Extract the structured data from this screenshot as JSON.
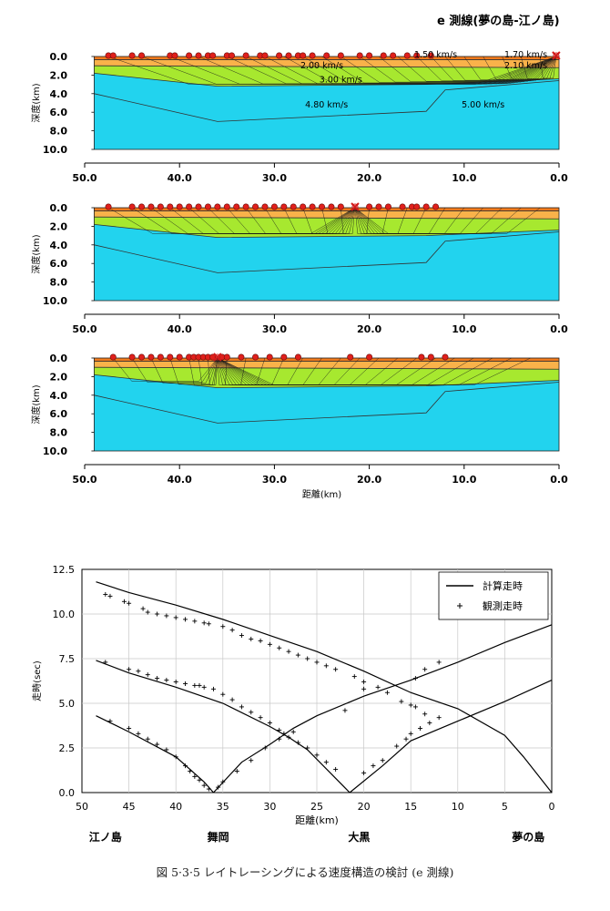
{
  "figure_title": "e 測線(夢の島-江ノ島)",
  "caption": "図 5·3·5 レイトレーシングによる速度構造の検討 (e 測線)",
  "colors": {
    "layer1": "#f07a1c",
    "layer2": "#f9b24a",
    "layer3": "#a7e82f",
    "layer4": "#22d3ee",
    "ray": "#1a1a1a",
    "station": "#e0201b",
    "shot": "#d21b1b",
    "calc_line": "#000000",
    "obs_marker": "#000000"
  },
  "sections": {
    "y_axis_label": "深度(km)",
    "x_axis_label": "距離(km)",
    "xticks": [
      50,
      40,
      30,
      20,
      10,
      0
    ],
    "xtick_labels": [
      "50.0",
      "40.0",
      "30.0",
      "20.0",
      "10.0",
      "0.0"
    ],
    "yticks": [
      0,
      2,
      4,
      6,
      8,
      10
    ],
    "ytick_labels": [
      "0.0",
      "2.0",
      "4.0",
      "6.0",
      "8.0",
      "10.0"
    ],
    "xlim": [
      50,
      0
    ],
    "ylim": [
      0,
      10
    ],
    "model_x_range": [
      49,
      0
    ],
    "velocity_labels": [
      {
        "text": "1.50 km/s",
        "x": 13,
        "y": -0.2
      },
      {
        "text": "1.70 km/s",
        "x": 3.5,
        "y": -0.2
      },
      {
        "text": "2.00 km/s",
        "x": 25,
        "y": 1.0
      },
      {
        "text": "2.10 km/s",
        "x": 3.5,
        "y": 1.0
      },
      {
        "text": "3.00 km/s",
        "x": 23,
        "y": 2.5
      },
      {
        "text": "4.80 km/s",
        "x": 24.5,
        "y": 5.2
      },
      {
        "text": "5.00 km/s",
        "x": 8,
        "y": 5.2
      }
    ],
    "boundaries": {
      "b1": [
        [
          49,
          0.35
        ],
        [
          0,
          0.35
        ]
      ],
      "b2": [
        [
          49,
          1.0
        ],
        [
          0,
          1.2
        ]
      ],
      "b3": [
        [
          49,
          1.8
        ],
        [
          36,
          3.2
        ],
        [
          14,
          3.0
        ],
        [
          0,
          2.4
        ]
      ],
      "b4": [
        [
          49,
          4.0
        ],
        [
          36,
          7.0
        ],
        [
          14,
          5.9
        ],
        [
          12,
          3.6
        ],
        [
          0,
          2.6
        ]
      ]
    },
    "panels": [
      {
        "shot_km": 0.3,
        "stations_km": [
          47.5,
          47,
          45,
          44,
          41,
          40.5,
          39,
          38,
          37,
          36.5,
          35,
          34.5,
          33,
          31.5,
          31,
          29.5,
          28.5,
          27.5,
          27,
          26,
          24.5,
          23,
          21,
          20,
          18.5,
          17.5,
          16,
          15,
          13.5
        ],
        "rays_to_km": [
          47.5,
          44,
          41,
          38,
          35,
          33,
          31,
          29,
          27,
          25,
          23,
          21,
          19,
          17,
          15,
          13.5,
          12,
          10,
          8,
          6,
          4,
          2
        ],
        "ray_depth_km": 3.0
      },
      {
        "shot_km": 21.5,
        "stations_km": [
          47.5,
          45,
          44,
          43,
          42,
          41,
          40,
          39,
          38,
          37,
          36,
          35,
          34,
          33,
          32,
          31,
          30,
          29,
          28,
          27,
          26,
          25,
          24,
          23,
          20,
          19,
          18,
          16.5,
          15.5,
          15,
          14,
          13
        ],
        "rays_to_km": [
          47.5,
          45,
          43,
          41,
          39,
          37,
          35,
          33,
          31,
          29,
          27,
          25,
          23,
          20,
          18,
          16,
          14,
          12,
          10,
          8,
          6,
          4,
          2
        ],
        "ray_depth_km": 2.8
      },
      {
        "shot_km": 36,
        "stations_km": [
          47,
          45,
          44,
          43,
          42,
          41,
          40,
          39,
          38.5,
          38,
          37.5,
          37,
          36.5,
          35.5,
          35,
          33.5,
          32,
          30.5,
          29,
          27.5,
          22,
          20,
          14.5,
          13.5,
          12
        ],
        "rays_to_km": [
          47,
          45,
          43,
          41,
          39,
          38,
          37,
          35,
          33,
          31,
          29,
          27,
          25,
          23,
          21,
          19,
          17,
          15,
          13,
          11,
          9,
          7,
          5,
          3
        ],
        "ray_depth_km": 2.9
      }
    ]
  },
  "travel_time": {
    "y_axis_label": "走時(sec)",
    "x_axis_label": "距離(km)",
    "legend": {
      "calc": "計算走時",
      "obs": "観測走時"
    },
    "place_labels": [
      "江ノ島",
      "舞岡",
      "大黒",
      "夢の島"
    ],
    "place_km": [
      47.5,
      35.5,
      20.5,
      2.5
    ],
    "chart_data": {
      "type": "line",
      "title": "",
      "xlabel": "距離(km)",
      "ylabel": "走時(sec)",
      "xlim": [
        50,
        0
      ],
      "ylim": [
        0,
        12.5
      ],
      "xticks": [
        50,
        45,
        40,
        35,
        30,
        25,
        20,
        15,
        10,
        5,
        0
      ],
      "yticks": [
        0,
        2.5,
        5,
        7.5,
        10,
        12.5
      ],
      "ytick_labels": [
        "0.0",
        "2.5",
        "5.0",
        "7.5",
        "10.0",
        "12.5"
      ],
      "grid": true,
      "legend_position": "top-right",
      "series": [
        {
          "name": "計算走時",
          "x": [
            48.5,
            45,
            40,
            35,
            30,
            25,
            20,
            15,
            10,
            5,
            3,
            0
          ],
          "y": [
            11.8,
            11.2,
            10.5,
            9.7,
            8.8,
            7.9,
            6.8,
            5.6,
            4.7,
            3.2,
            2.0,
            0.0
          ]
        },
        {
          "name": "計算走時",
          "x": [
            48.5,
            45,
            40,
            35,
            30,
            28,
            26,
            21.5
          ],
          "y": [
            7.4,
            6.7,
            5.9,
            5.0,
            3.7,
            3.1,
            2.4,
            0.0
          ]
        },
        {
          "name": "計算走時",
          "x": [
            21.5,
            18,
            15,
            10,
            5,
            0
          ],
          "y": [
            0.0,
            1.5,
            2.9,
            4.0,
            5.1,
            6.3
          ]
        },
        {
          "name": "計算走時",
          "x": [
            48.5,
            45,
            40,
            37,
            36
          ],
          "y": [
            4.3,
            3.4,
            2.0,
            0.6,
            0.0
          ]
        },
        {
          "name": "計算走時",
          "x": [
            36,
            33,
            30,
            27.5,
            25,
            20,
            15,
            10,
            5,
            0
          ],
          "y": [
            0.0,
            1.7,
            2.7,
            3.6,
            4.3,
            5.4,
            6.3,
            7.3,
            8.4,
            9.4
          ]
        },
        {
          "name": "観測走時",
          "type": "scatter",
          "x": [
            47.5,
            47,
            45.5,
            45,
            43.5,
            43,
            42,
            41,
            40,
            39,
            38,
            37,
            36.5,
            35,
            34,
            33,
            32,
            31,
            30,
            29,
            28,
            27,
            26,
            25,
            24,
            23,
            21,
            20,
            18.5,
            17.5,
            16,
            15,
            14.5,
            13.5
          ],
          "y": [
            11.1,
            11.0,
            10.7,
            10.6,
            10.3,
            10.1,
            10.0,
            9.9,
            9.8,
            9.7,
            9.6,
            9.5,
            9.45,
            9.3,
            9.1,
            8.8,
            8.6,
            8.5,
            8.3,
            8.1,
            7.9,
            7.7,
            7.5,
            7.3,
            7.1,
            6.9,
            6.5,
            6.2,
            5.9,
            5.6,
            5.1,
            4.9,
            4.8,
            4.4
          ]
        },
        {
          "name": "観測走時",
          "type": "scatter",
          "x": [
            47.5,
            45,
            44,
            43,
            42,
            41,
            40,
            39,
            38,
            37.5,
            37,
            36,
            35,
            34,
            33,
            32,
            31,
            30,
            29,
            28.5,
            28,
            27,
            26,
            25,
            24,
            23,
            20,
            19,
            18,
            16.5,
            15.5,
            15,
            14,
            13,
            12
          ],
          "y": [
            7.3,
            6.9,
            6.8,
            6.6,
            6.4,
            6.3,
            6.2,
            6.1,
            6.0,
            6.0,
            5.9,
            5.8,
            5.5,
            5.2,
            4.8,
            4.5,
            4.2,
            3.9,
            3.5,
            3.3,
            3.1,
            2.8,
            2.5,
            2.1,
            1.7,
            1.3,
            1.1,
            1.5,
            1.8,
            2.6,
            3.0,
            3.3,
            3.6,
            3.9,
            4.2
          ]
        },
        {
          "name": "観測走時",
          "type": "scatter",
          "x": [
            47,
            45,
            44,
            43,
            42,
            41,
            40,
            39,
            38.5,
            38,
            37.5,
            37,
            36.5,
            35.5,
            35,
            33.5,
            32,
            30.5,
            29,
            27.5,
            22,
            20,
            14.5,
            13.5,
            12
          ],
          "y": [
            4.0,
            3.6,
            3.3,
            3.0,
            2.7,
            2.4,
            2.0,
            1.5,
            1.2,
            0.9,
            0.7,
            0.4,
            0.2,
            0.3,
            0.6,
            1.2,
            1.8,
            2.5,
            3.0,
            3.4,
            4.6,
            5.8,
            6.4,
            6.9,
            7.3
          ]
        }
      ]
    }
  }
}
